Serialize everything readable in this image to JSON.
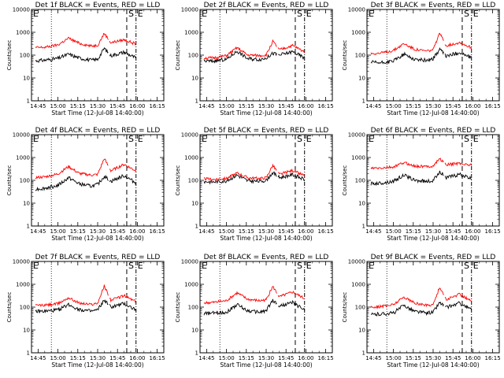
{
  "chart_data": {
    "type": "line",
    "layout": "3x3 grid of panels",
    "xlabel": "Start Time (12-Jul-08 14:40:00)",
    "ylabel": "Counts/sec",
    "x_ticks": [
      "14:45",
      "15:00",
      "15:15",
      "15:30",
      "15:45",
      "16:00",
      "16:15"
    ],
    "y_ticks": [
      "1",
      "10",
      "100",
      "1000",
      "10000"
    ],
    "y_scale": "log",
    "ylim": [
      1,
      10000
    ],
    "xlim": [
      "14:40",
      "16:20"
    ],
    "markers": [
      {
        "label": "E",
        "time": "14:40"
      },
      {
        "label": "S",
        "time": "15:52"
      },
      {
        "label": "E",
        "time": "15:59"
      }
    ],
    "reference_line": {
      "time": "14:55",
      "style": "dotted"
    },
    "series_colors": {
      "Events": "#000000",
      "LLD": "#ff0000"
    },
    "panels": [
      {
        "title": "Det 1f BLACK = Events, RED = LLD",
        "events": [
          [
            0,
            55
          ],
          [
            10,
            60
          ],
          [
            20,
            72
          ],
          [
            28,
            110
          ],
          [
            36,
            75
          ],
          [
            45,
            60
          ],
          [
            50,
            65
          ],
          [
            55,
            200
          ],
          [
            60,
            95
          ],
          [
            70,
            135
          ],
          [
            80,
            70
          ]
        ],
        "lld": [
          [
            0,
            210
          ],
          [
            10,
            220
          ],
          [
            20,
            280
          ],
          [
            28,
            550
          ],
          [
            36,
            330
          ],
          [
            45,
            250
          ],
          [
            50,
            270
          ],
          [
            55,
            900
          ],
          [
            60,
            350
          ],
          [
            70,
            470
          ],
          [
            80,
            290
          ]
        ]
      },
      {
        "title": "Det 2f BLACK = Events, RED = LLD",
        "events": [
          [
            0,
            55
          ],
          [
            10,
            55
          ],
          [
            20,
            65
          ],
          [
            28,
            150
          ],
          [
            36,
            70
          ],
          [
            45,
            65
          ],
          [
            50,
            75
          ],
          [
            55,
            120
          ],
          [
            60,
            100
          ],
          [
            70,
            140
          ],
          [
            80,
            70
          ]
        ],
        "lld": [
          [
            0,
            75
          ],
          [
            10,
            75
          ],
          [
            20,
            95
          ],
          [
            28,
            210
          ],
          [
            36,
            100
          ],
          [
            45,
            95
          ],
          [
            50,
            100
          ],
          [
            55,
            400
          ],
          [
            60,
            170
          ],
          [
            70,
            260
          ],
          [
            80,
            130
          ]
        ]
      },
      {
        "title": "Det 3f BLACK = Events, RED = LLD",
        "events": [
          [
            0,
            50
          ],
          [
            10,
            45
          ],
          [
            20,
            55
          ],
          [
            28,
            110
          ],
          [
            36,
            65
          ],
          [
            45,
            60
          ],
          [
            50,
            70
          ],
          [
            55,
            180
          ],
          [
            60,
            90
          ],
          [
            70,
            130
          ],
          [
            80,
            70
          ]
        ],
        "lld": [
          [
            0,
            120
          ],
          [
            10,
            120
          ],
          [
            20,
            160
          ],
          [
            28,
            320
          ],
          [
            36,
            180
          ],
          [
            45,
            150
          ],
          [
            50,
            170
          ],
          [
            55,
            900
          ],
          [
            60,
            260
          ],
          [
            70,
            360
          ],
          [
            80,
            200
          ]
        ]
      },
      {
        "title": "Det 4f BLACK = Events, RED = LLD",
        "events": [
          [
            0,
            40
          ],
          [
            10,
            45
          ],
          [
            20,
            60
          ],
          [
            28,
            130
          ],
          [
            36,
            70
          ],
          [
            45,
            55
          ],
          [
            50,
            65
          ],
          [
            55,
            150
          ],
          [
            60,
            90
          ],
          [
            70,
            160
          ],
          [
            80,
            70
          ]
        ],
        "lld": [
          [
            0,
            130
          ],
          [
            10,
            140
          ],
          [
            20,
            190
          ],
          [
            28,
            400
          ],
          [
            36,
            200
          ],
          [
            45,
            170
          ],
          [
            50,
            180
          ],
          [
            55,
            900
          ],
          [
            60,
            260
          ],
          [
            70,
            500
          ],
          [
            80,
            240
          ]
        ]
      },
      {
        "title": "Det 5f BLACK = Events, RED = LLD",
        "events": [
          [
            0,
            90
          ],
          [
            10,
            85
          ],
          [
            20,
            95
          ],
          [
            28,
            170
          ],
          [
            36,
            95
          ],
          [
            45,
            90
          ],
          [
            50,
            100
          ],
          [
            55,
            220
          ],
          [
            60,
            130
          ],
          [
            70,
            180
          ],
          [
            80,
            100
          ]
        ],
        "lld": [
          [
            0,
            120
          ],
          [
            10,
            110
          ],
          [
            20,
            120
          ],
          [
            28,
            210
          ],
          [
            36,
            130
          ],
          [
            45,
            120
          ],
          [
            50,
            130
          ],
          [
            55,
            450
          ],
          [
            60,
            180
          ],
          [
            70,
            270
          ],
          [
            80,
            150
          ]
        ]
      },
      {
        "title": "Det 6f BLACK = Events, RED = LLD",
        "events": [
          [
            0,
            70
          ],
          [
            10,
            75
          ],
          [
            20,
            90
          ],
          [
            28,
            170
          ],
          [
            36,
            100
          ],
          [
            45,
            90
          ],
          [
            50,
            95
          ],
          [
            55,
            250
          ],
          [
            60,
            130
          ],
          [
            70,
            180
          ],
          [
            80,
            110
          ]
        ],
        "lld": [
          [
            0,
            330
          ],
          [
            10,
            340
          ],
          [
            20,
            380
          ],
          [
            28,
            600
          ],
          [
            36,
            420
          ],
          [
            45,
            400
          ],
          [
            50,
            420
          ],
          [
            55,
            900
          ],
          [
            60,
            480
          ],
          [
            70,
            560
          ],
          [
            80,
            450
          ]
        ]
      },
      {
        "title": "Det 7f BLACK = Events, RED = LLD",
        "events": [
          [
            0,
            65
          ],
          [
            10,
            65
          ],
          [
            20,
            75
          ],
          [
            28,
            130
          ],
          [
            36,
            80
          ],
          [
            45,
            65
          ],
          [
            50,
            75
          ],
          [
            55,
            200
          ],
          [
            60,
            100
          ],
          [
            70,
            140
          ],
          [
            80,
            70
          ]
        ],
        "lld": [
          [
            0,
            120
          ],
          [
            10,
            120
          ],
          [
            20,
            140
          ],
          [
            28,
            260
          ],
          [
            36,
            150
          ],
          [
            45,
            130
          ],
          [
            50,
            150
          ],
          [
            55,
            850
          ],
          [
            60,
            200
          ],
          [
            70,
            320
          ],
          [
            80,
            160
          ]
        ]
      },
      {
        "title": "Det 8f BLACK = Events, RED = LLD",
        "events": [
          [
            0,
            50
          ],
          [
            10,
            55
          ],
          [
            20,
            60
          ],
          [
            28,
            130
          ],
          [
            36,
            70
          ],
          [
            45,
            60
          ],
          [
            50,
            70
          ],
          [
            55,
            200
          ],
          [
            60,
            110
          ],
          [
            70,
            160
          ],
          [
            80,
            70
          ]
        ],
        "lld": [
          [
            0,
            150
          ],
          [
            10,
            160
          ],
          [
            20,
            190
          ],
          [
            28,
            420
          ],
          [
            36,
            220
          ],
          [
            45,
            190
          ],
          [
            50,
            210
          ],
          [
            55,
            800
          ],
          [
            60,
            280
          ],
          [
            70,
            460
          ],
          [
            80,
            220
          ]
        ]
      },
      {
        "title": "Det 9f BLACK = Events, RED = LLD",
        "events": [
          [
            0,
            45
          ],
          [
            10,
            50
          ],
          [
            20,
            55
          ],
          [
            28,
            120
          ],
          [
            36,
            65
          ],
          [
            45,
            55
          ],
          [
            50,
            60
          ],
          [
            55,
            160
          ],
          [
            60,
            95
          ],
          [
            70,
            150
          ],
          [
            80,
            70
          ]
        ],
        "lld": [
          [
            0,
            100
          ],
          [
            10,
            105
          ],
          [
            20,
            130
          ],
          [
            28,
            280
          ],
          [
            36,
            150
          ],
          [
            45,
            120
          ],
          [
            50,
            130
          ],
          [
            55,
            750
          ],
          [
            60,
            210
          ],
          [
            70,
            370
          ],
          [
            80,
            170
          ]
        ]
      }
    ]
  }
}
